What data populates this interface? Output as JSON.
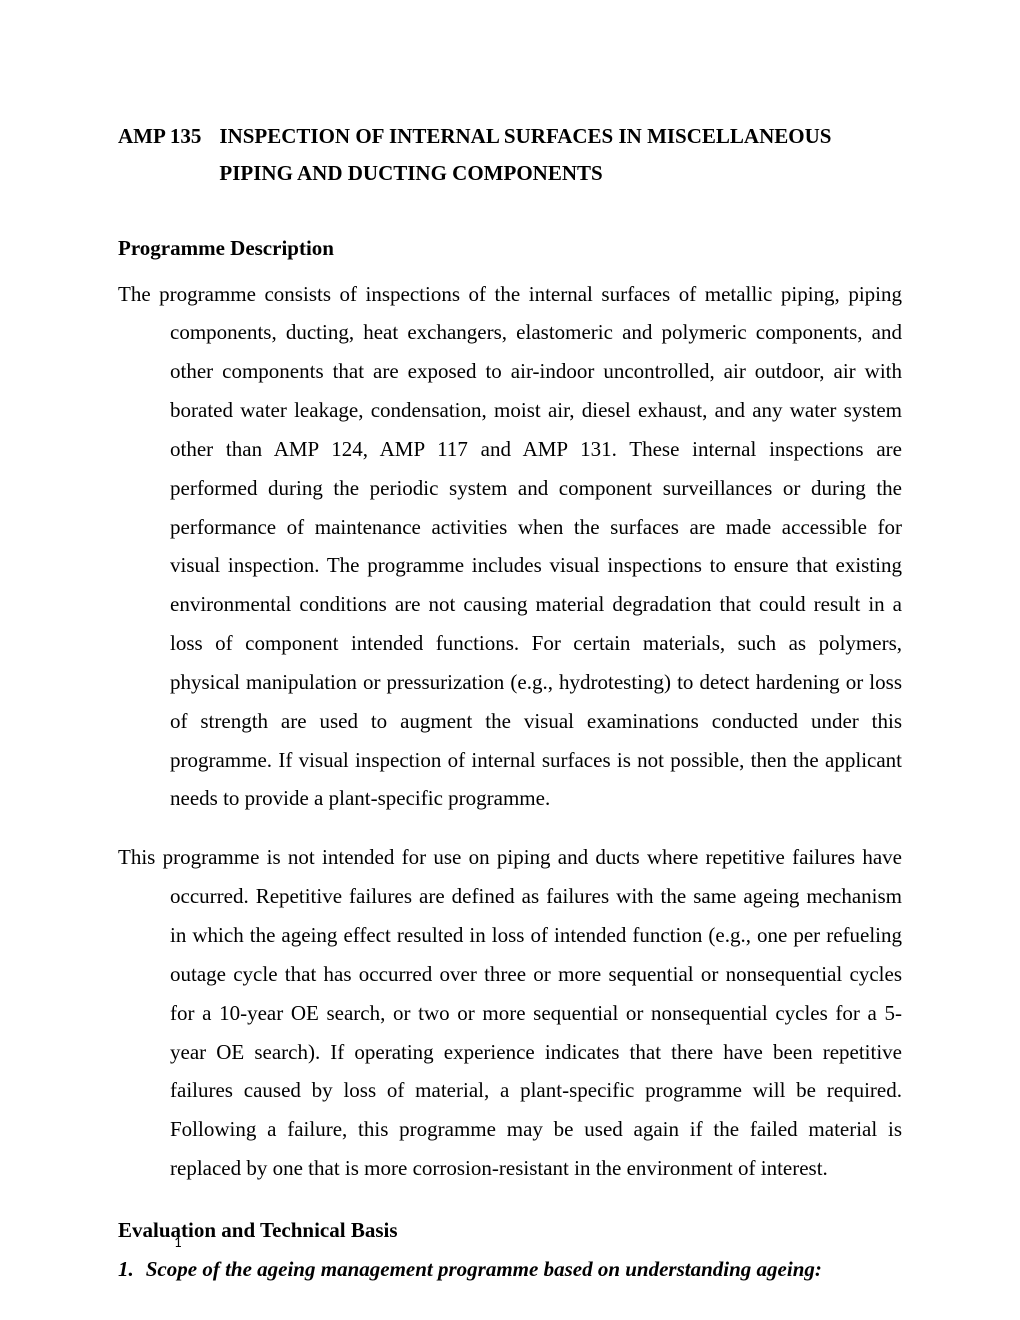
{
  "title": {
    "code": "AMP 135",
    "text": "INSPECTION OF INTERNAL SURFACES IN MISCELLANEOUS PIPING AND DUCTING COMPONENTS"
  },
  "sections": {
    "programme_description": {
      "heading": "Programme Description",
      "para1": "The programme consists of inspections of the internal surfaces of metallic piping, piping components, ducting, heat exchangers, elastomeric and polymeric components, and other components that are exposed to air-indoor uncontrolled, air outdoor, air with borated water leakage, condensation, moist air, diesel exhaust, and any water system other than AMP 124, AMP 117 and AMP 131. These internal inspections are performed during the periodic system and component surveillances or during the performance of maintenance activities when the surfaces are made accessible for visual inspection. The programme includes visual inspections to ensure that existing environmental conditions are not causing material degradation that could result in a loss of component intended functions. For certain materials, such as polymers, physical manipulation or pressurization (e.g., hydrotesting) to detect hardening or loss of strength are used to augment the visual examinations conducted under this programme. If visual inspection of internal surfaces is not possible, then the applicant needs to provide a plant-specific programme.",
      "para2": "This programme is not intended for use on piping and ducts where repetitive failures have occurred. Repetitive failures are defined as failures with the same ageing mechanism in which the ageing effect resulted in loss of intended function (e.g., one per refueling outage cycle that has occurred over three or more sequential or nonsequential cycles for a 10-year OE search, or two or more sequential or nonsequential cycles for a 5-year OE search). If operating experience indicates that there have been repetitive failures caused by loss of material, a plant-specific programme will be required. Following a failure, this programme may be used again if the failed material is replaced by one that is more corrosion-resistant in the environment of interest."
    },
    "evaluation": {
      "heading": "Evaluation and Technical Basis",
      "item1_number": "1.",
      "item1_text": "Scope of the ageing management programme based on understanding ageing:"
    }
  },
  "page_number": "1",
  "colors": {
    "text": "#000000",
    "background": "#ffffff"
  },
  "typography": {
    "body_font": "Times New Roman",
    "body_size_pt": 12,
    "page_number_font": "Calibri",
    "page_number_size_pt": 11
  }
}
